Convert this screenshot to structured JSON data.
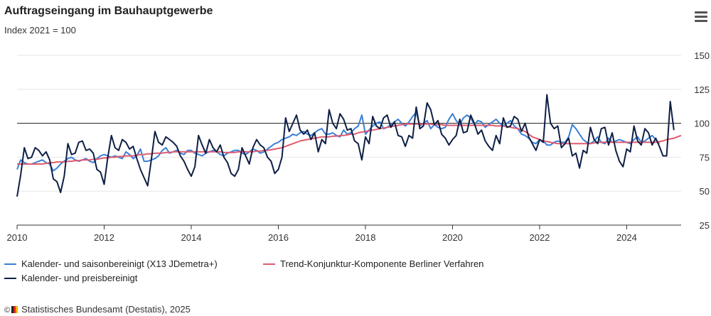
{
  "header": {
    "title": "Auftragseingang im Bauhauptgewerbe",
    "subtitle": "Index 2021 = 100"
  },
  "footer": {
    "credit": "Statistisches Bundesamt (Destatis), 2025"
  },
  "icons": {
    "menu": "hamburger-menu-icon",
    "logo": "destatis-logo-icon"
  },
  "colors": {
    "saisonbereinigt": "#3a7fd5",
    "trend": "#e05a6e",
    "preisbereinigt": "#0e1f45",
    "reference_line": "#222222",
    "grid": "#e6e6e6"
  },
  "chart_data": {
    "type": "line",
    "xlim": [
      "2010-01",
      "2025-04"
    ],
    "ylim": [
      25,
      150
    ],
    "x_ticks": [
      "2010",
      "2012",
      "2014",
      "2016",
      "2018",
      "2020",
      "2022",
      "2024"
    ],
    "y_ticks": [
      "25",
      "50",
      "75",
      "100",
      "125",
      "150"
    ],
    "reference_line": 100,
    "grid": true,
    "legend_position": "bottom-left",
    "series": [
      {
        "name": "Kalender- und saisonbereinigt (X13 JDemetra+)",
        "x_start": "2010-01",
        "frequency": "monthly",
        "values": [
          66,
          73,
          71,
          70,
          70,
          71,
          72,
          73,
          71,
          70,
          65,
          67,
          70,
          72,
          74,
          75,
          73,
          72,
          73,
          74,
          72,
          71,
          74,
          76,
          77,
          76,
          75,
          76,
          75,
          74,
          79,
          77,
          74,
          76,
          81,
          72,
          72,
          73,
          74,
          76,
          80,
          82,
          78,
          79,
          80,
          78,
          77,
          80,
          80,
          78,
          77,
          76,
          78,
          79,
          80,
          79,
          77,
          76,
          78,
          79,
          80,
          80,
          78,
          77,
          79,
          81,
          80,
          78,
          79,
          81,
          83,
          85,
          86,
          88,
          89,
          90,
          92,
          91,
          93,
          94,
          92,
          91,
          93,
          95,
          96,
          92,
          92,
          93,
          91,
          90,
          95,
          92,
          93,
          96,
          98,
          106,
          92,
          95,
          98,
          100,
          101,
          96,
          97,
          99,
          101,
          103,
          100,
          98,
          101,
          105,
          108,
          98,
          100,
          102,
          96,
          99,
          97,
          96,
          97,
          103,
          107,
          102,
          99,
          104,
          106,
          104,
          99,
          102,
          101,
          97,
          99,
          101,
          103,
          100,
          98,
          100,
          102,
          98,
          96,
          92,
          91,
          89,
          86,
          85,
          88,
          87,
          84,
          84,
          86,
          87,
          86,
          86,
          90,
          99,
          96,
          92,
          88,
          86,
          85,
          87,
          90,
          86,
          85,
          89,
          86,
          87,
          88,
          87,
          86,
          85,
          88,
          90,
          86,
          87,
          89,
          91,
          88,
          85
        ]
      },
      {
        "name": "Trend-Konjunktur-Komponente Berliner Verfahren",
        "x_start": "2010-01",
        "frequency": "monthly",
        "values": [
          70,
          70,
          70,
          70,
          70,
          70,
          70,
          70,
          70.5,
          71,
          71,
          71.5,
          71.5,
          71.5,
          72,
          72,
          72.5,
          72.5,
          73,
          73,
          73,
          73.5,
          73.5,
          74,
          74.5,
          74.5,
          75,
          75,
          75.5,
          75.5,
          76,
          76,
          76,
          76.5,
          77,
          77,
          77.5,
          77.5,
          78,
          78,
          78,
          78.5,
          78.5,
          79,
          79,
          79,
          79,
          79,
          79,
          79,
          79,
          79,
          79,
          79,
          79,
          79,
          79,
          78.5,
          78.5,
          78.5,
          78.5,
          79,
          79,
          79,
          79,
          79,
          79.5,
          79.5,
          80,
          80,
          80.5,
          81,
          81.5,
          82,
          83,
          84,
          85,
          86,
          87,
          87.5,
          88,
          88.5,
          89,
          89.5,
          90,
          90,
          90,
          90.5,
          90.5,
          91,
          91,
          91.5,
          92,
          92,
          93,
          93.5,
          94,
          94.5,
          95,
          95.5,
          96,
          96.5,
          97,
          97.5,
          98,
          98.5,
          99,
          99.5,
          99.5,
          99.5,
          99.5,
          99.5,
          99.5,
          99.5,
          99.5,
          99,
          99,
          99,
          98.5,
          98.5,
          98.5,
          98.5,
          98.5,
          98.5,
          98.5,
          98.5,
          98.5,
          98.5,
          98.5,
          98.5,
          98.5,
          98.5,
          98,
          98,
          98,
          97.5,
          97,
          96.5,
          96,
          95,
          94,
          92,
          90,
          89,
          88,
          87,
          86.5,
          86,
          85.5,
          85,
          85,
          85,
          85,
          85,
          85,
          85,
          85,
          85,
          85,
          85.5,
          86,
          86,
          86,
          86,
          86,
          86,
          86,
          86,
          86,
          86,
          86,
          86,
          86,
          86,
          86,
          86,
          86,
          86.5,
          87,
          88,
          88.5,
          89,
          90,
          91
        ]
      },
      {
        "name": "Kalender- und preisbereinigt",
        "x_start": "2010-01",
        "frequency": "monthly",
        "values": [
          46,
          62,
          82,
          74,
          75,
          82,
          80,
          76,
          79,
          73,
          59,
          57,
          49,
          61,
          85,
          77,
          78,
          86,
          87,
          80,
          81,
          78,
          66,
          64,
          55,
          75,
          91,
          82,
          80,
          88,
          86,
          81,
          83,
          74,
          66,
          60,
          54,
          73,
          94,
          86,
          84,
          90,
          88,
          86,
          83,
          76,
          72,
          66,
          61,
          68,
          91,
          84,
          78,
          88,
          82,
          79,
          84,
          75,
          71,
          63,
          61,
          66,
          82,
          76,
          70,
          82,
          88,
          84,
          82,
          75,
          72,
          63,
          66,
          75,
          104,
          94,
          100,
          106,
          95,
          92,
          95,
          88,
          93,
          79,
          88,
          85,
          110,
          100,
          96,
          107,
          103,
          95,
          96,
          87,
          85,
          73,
          90,
          85,
          105,
          98,
          96,
          104,
          106,
          97,
          101,
          91,
          90,
          83,
          91,
          89,
          112,
          96,
          98,
          115,
          110,
          99,
          102,
          92,
          89,
          84,
          88,
          91,
          103,
          93,
          94,
          106,
          100,
          92,
          95,
          87,
          83,
          80,
          91,
          85,
          104,
          97,
          98,
          105,
          103,
          94,
          100,
          90,
          85,
          80,
          88,
          86,
          121,
          100,
          96,
          98,
          82,
          85,
          89,
          76,
          78,
          67,
          80,
          78,
          97,
          88,
          85,
          96,
          97,
          84,
          93,
          80,
          72,
          68,
          81,
          79,
          98,
          87,
          84,
          96,
          93,
          84,
          89,
          83,
          76,
          76,
          116,
          95
        ]
      }
    ]
  }
}
